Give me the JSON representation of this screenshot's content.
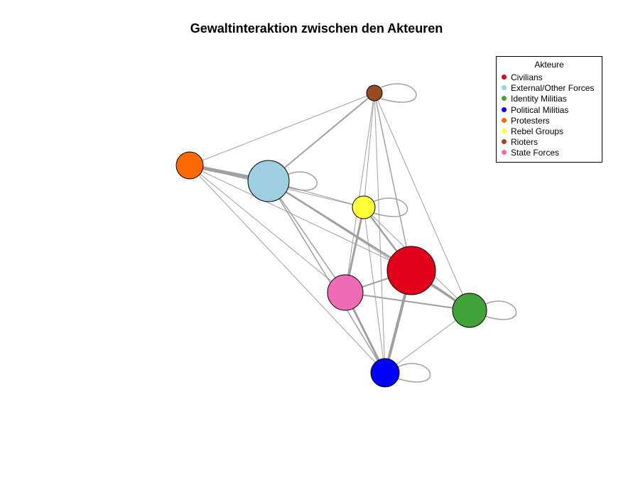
{
  "title": "Gewaltinteraktion zwischen den Akteuren",
  "legend": {
    "title": "Akteure",
    "items": [
      {
        "label": "Civilians",
        "color": "#E2001A"
      },
      {
        "label": "External/Other Forces",
        "color": "#9ECFE0"
      },
      {
        "label": "Identity Militias",
        "color": "#3FA33A"
      },
      {
        "label": "Political Militias",
        "color": "#0000FF"
      },
      {
        "label": "Protesters",
        "color": "#FF6A00"
      },
      {
        "label": "Rebel Groups",
        "color": "#FFFF33"
      },
      {
        "label": "Rioters",
        "color": "#9A4A22"
      },
      {
        "label": "State Forces",
        "color": "#F06BB5"
      }
    ]
  },
  "edge_color": "#A0A0A0",
  "node_border_color": "#000000"
}
